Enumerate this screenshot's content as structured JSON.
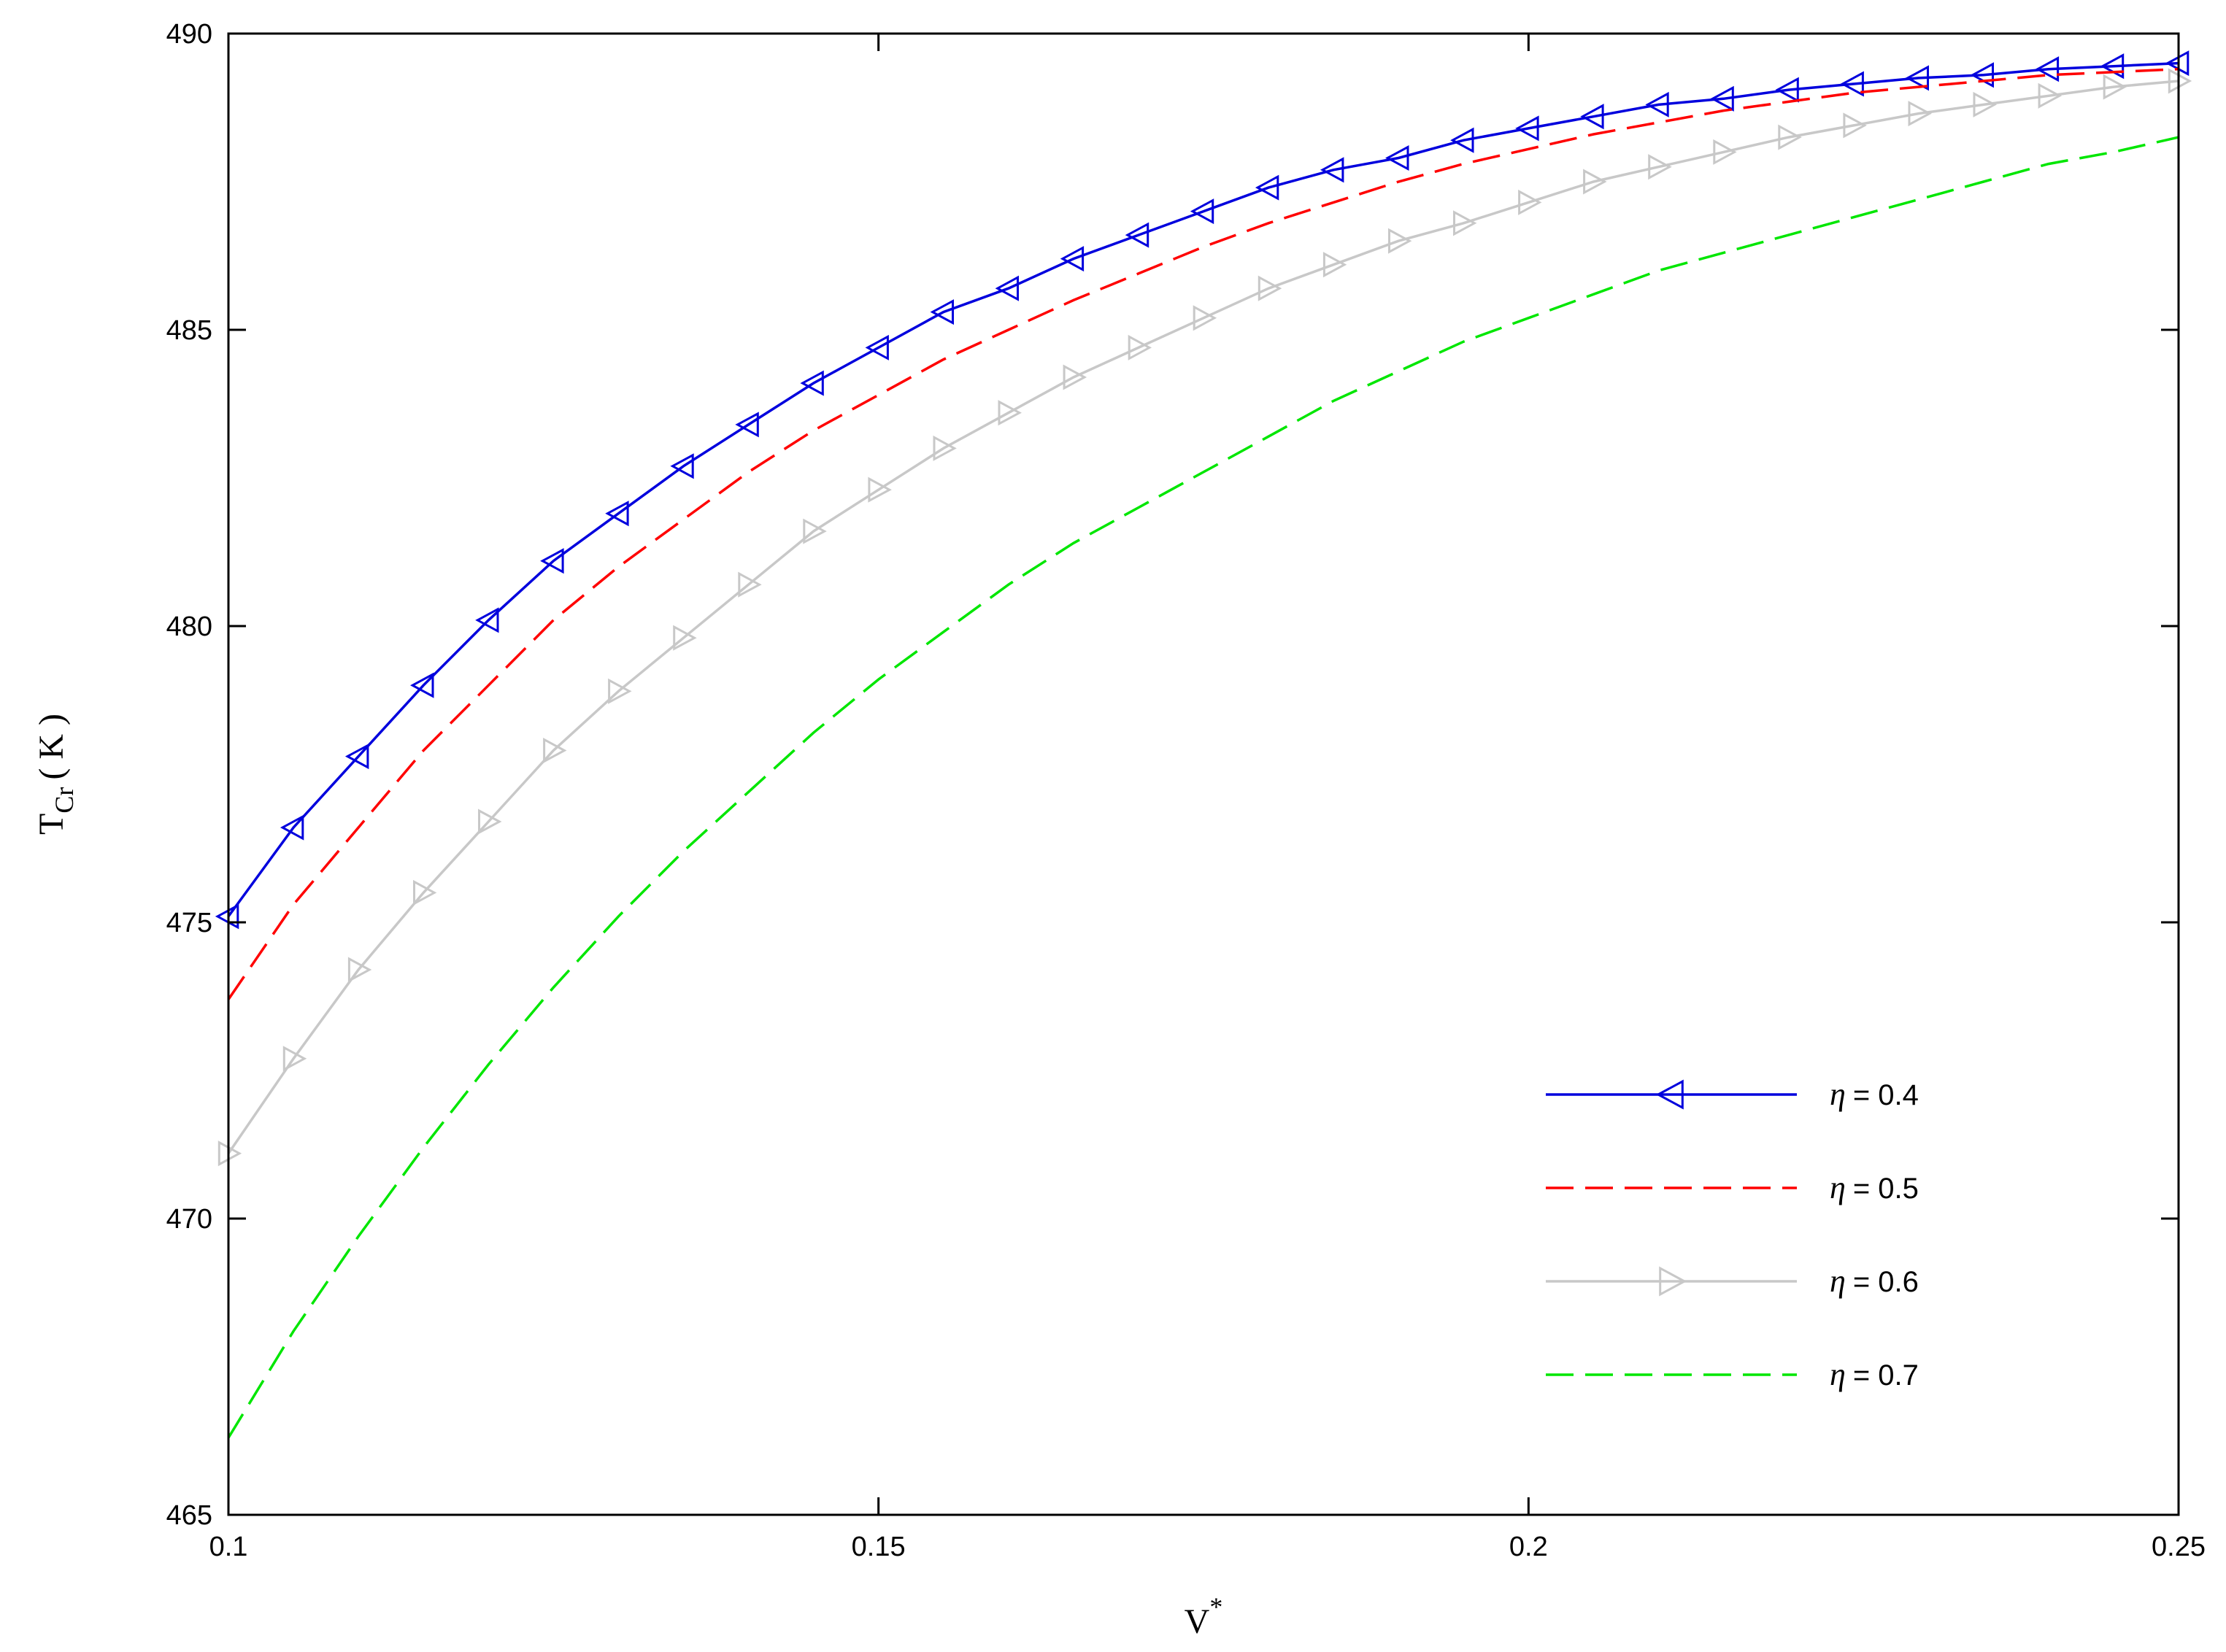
{
  "chart_data": {
    "type": "line",
    "xlabel": {
      "base": "V",
      "sup": "*"
    },
    "ylabel": {
      "base": "T",
      "sub": "Cr",
      "unit": "( K )"
    },
    "xlim": [
      0.1,
      0.25
    ],
    "ylim": [
      465,
      490
    ],
    "xticks": [
      "0.1",
      "0.15",
      "0.2",
      "0.25"
    ],
    "xtick_values": [
      0.1,
      0.15,
      0.2,
      0.25
    ],
    "yticks": [
      "465",
      "470",
      "475",
      "480",
      "485",
      "490"
    ],
    "ytick_values": [
      465,
      470,
      475,
      480,
      485,
      490
    ],
    "grid": false,
    "legend_position": "lower-right",
    "x": [
      0.1,
      0.105,
      0.11,
      0.115,
      0.12,
      0.125,
      0.13,
      0.135,
      0.14,
      0.145,
      0.15,
      0.155,
      0.16,
      0.165,
      0.17,
      0.175,
      0.18,
      0.185,
      0.19,
      0.195,
      0.2,
      0.205,
      0.21,
      0.215,
      0.22,
      0.225,
      0.23,
      0.235,
      0.24,
      0.245,
      0.25
    ],
    "series": [
      {
        "name": "η = 0.4",
        "eta_symbol": "η",
        "eta_value": "= 0.4",
        "color": "#0000dd",
        "line": "solid",
        "marker": "triangle-left",
        "values": [
          475.1,
          476.6,
          477.8,
          479.0,
          480.1,
          481.1,
          481.9,
          482.7,
          483.4,
          484.1,
          484.7,
          485.3,
          485.7,
          486.2,
          486.6,
          487.0,
          487.4,
          487.7,
          487.9,
          488.2,
          488.4,
          488.6,
          488.8,
          488.9,
          489.05,
          489.15,
          489.25,
          489.3,
          489.4,
          489.45,
          489.5
        ]
      },
      {
        "name": "η = 0.5",
        "eta_symbol": "η",
        "eta_value": "= 0.5",
        "color": "#ff0000",
        "line": "dashed",
        "marker": "none",
        "values": [
          473.7,
          475.3,
          476.6,
          477.9,
          479.0,
          480.1,
          481.0,
          481.8,
          482.6,
          483.3,
          483.9,
          484.5,
          485.0,
          485.5,
          485.95,
          486.4,
          486.8,
          487.15,
          487.5,
          487.8,
          488.05,
          488.3,
          488.5,
          488.7,
          488.85,
          489.0,
          489.1,
          489.2,
          489.3,
          489.35,
          489.4
        ]
      },
      {
        "name": "η = 0.6",
        "eta_symbol": "η",
        "eta_value": "= 0.6",
        "color": "#c8c8c8",
        "line": "solid",
        "marker": "triangle-right",
        "values": [
          471.1,
          472.7,
          474.2,
          475.5,
          476.7,
          477.9,
          478.9,
          479.8,
          480.7,
          481.6,
          482.3,
          483.0,
          483.6,
          484.2,
          484.7,
          485.2,
          485.7,
          486.1,
          486.5,
          486.8,
          487.15,
          487.5,
          487.75,
          488.0,
          488.25,
          488.45,
          488.65,
          488.8,
          488.95,
          489.1,
          489.2
        ]
      },
      {
        "name": "η = 0.7",
        "eta_symbol": "η",
        "eta_value": "= 0.7",
        "color": "#00e600",
        "line": "dashed",
        "marker": "none",
        "values": [
          466.3,
          468.1,
          469.7,
          471.2,
          472.6,
          473.9,
          475.1,
          476.2,
          477.2,
          478.2,
          479.1,
          479.9,
          480.7,
          481.4,
          482.0,
          482.6,
          483.2,
          483.8,
          484.3,
          484.8,
          485.2,
          485.6,
          486.0,
          486.3,
          486.6,
          486.9,
          487.2,
          487.5,
          487.8,
          488.0,
          488.25
        ]
      }
    ]
  }
}
